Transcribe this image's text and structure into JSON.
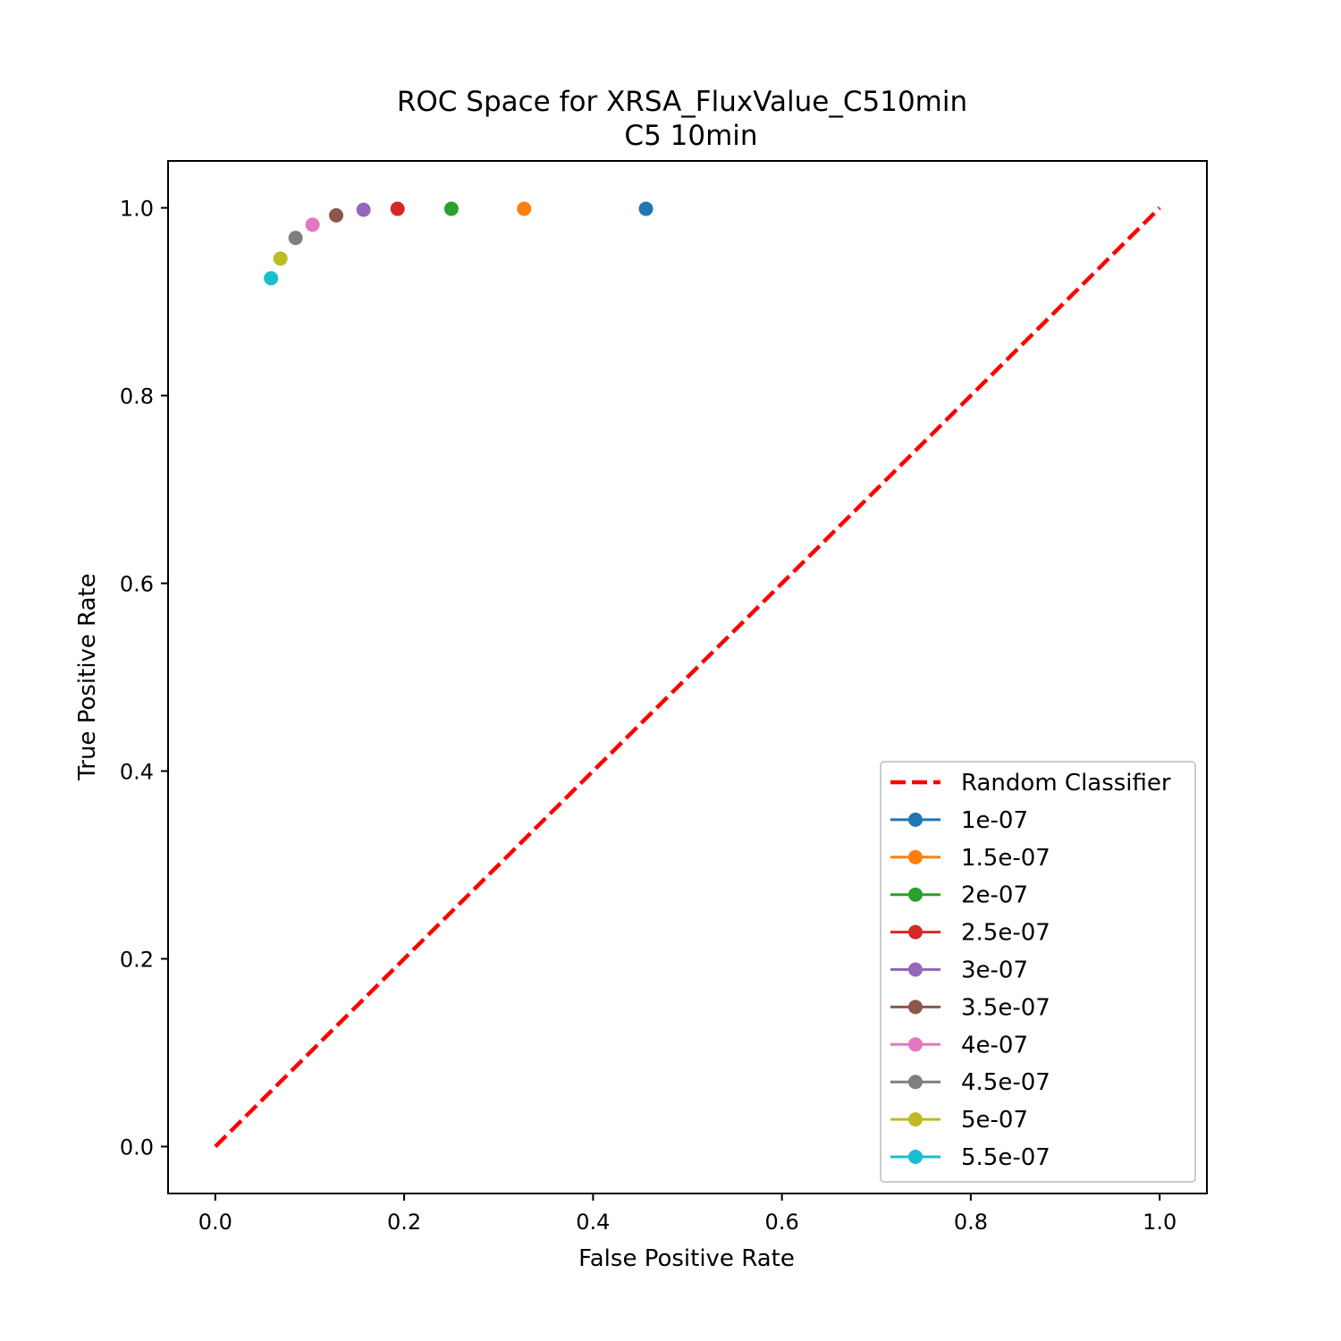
{
  "chart_data": {
    "type": "scatter",
    "title": "ROC Space for XRSA_FluxValue_C510min",
    "subtitle": "C5 10min",
    "xlabel": "False Positive Rate",
    "ylabel": "True Positive Rate",
    "xlim": [
      -0.05,
      1.05
    ],
    "ylim": [
      -0.05,
      1.05
    ],
    "xticks": [
      "0.0",
      "0.2",
      "0.4",
      "0.6",
      "0.8",
      "1.0"
    ],
    "yticks": [
      "0.0",
      "0.2",
      "0.4",
      "0.6",
      "0.8",
      "1.0"
    ],
    "grid": false,
    "legend_position": "lower-right",
    "reference_line": {
      "name": "Random Classifier",
      "x": [
        0,
        1
      ],
      "y": [
        0,
        1
      ],
      "color": "#ff0000",
      "style": "dashed"
    },
    "series": [
      {
        "name": "1e-07",
        "x": 0.456,
        "y": 0.999,
        "color": "#1f77b4"
      },
      {
        "name": "1.5e-07",
        "x": 0.327,
        "y": 0.999,
        "color": "#ff7f0e"
      },
      {
        "name": "2e-07",
        "x": 0.25,
        "y": 0.999,
        "color": "#2ca02c"
      },
      {
        "name": "2.5e-07",
        "x": 0.193,
        "y": 0.999,
        "color": "#d62728"
      },
      {
        "name": "3e-07",
        "x": 0.157,
        "y": 0.998,
        "color": "#9467bd"
      },
      {
        "name": "3.5e-07",
        "x": 0.128,
        "y": 0.992,
        "color": "#8c564b"
      },
      {
        "name": "4e-07",
        "x": 0.103,
        "y": 0.982,
        "color": "#e377c2"
      },
      {
        "name": "4.5e-07",
        "x": 0.085,
        "y": 0.968,
        "color": "#7f7f7f"
      },
      {
        "name": "5e-07",
        "x": 0.069,
        "y": 0.946,
        "color": "#bcbd22"
      },
      {
        "name": "5.5e-07",
        "x": 0.059,
        "y": 0.925,
        "color": "#17becf"
      }
    ]
  }
}
